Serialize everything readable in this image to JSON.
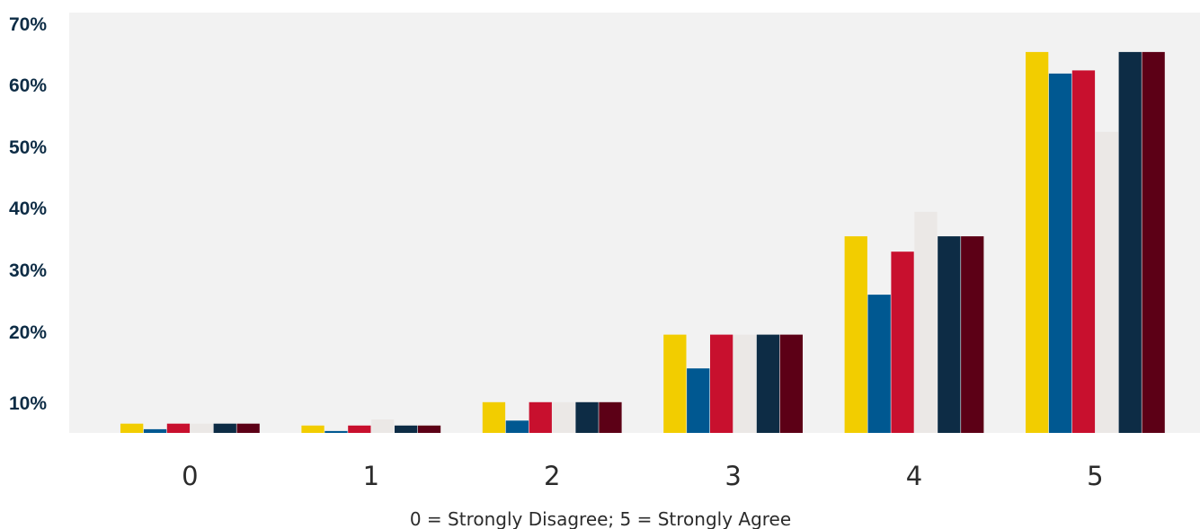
{
  "chart_data": {
    "type": "bar",
    "categories": [
      "0",
      "1",
      "2",
      "3",
      "4",
      "5"
    ],
    "xlabel": "0 = Strongly Disagree;  5 = Strongly Agree",
    "ylabel": "",
    "yticks": [
      "10%",
      "20%",
      "30%",
      "40%",
      "50%",
      "60%",
      "70%"
    ],
    "ylim": [
      0,
      70
    ],
    "grid": false,
    "legend": "none",
    "background": "#f2f2f2",
    "series": [
      {
        "color": "#f2cd00",
        "values": [
          1.5,
          1.2,
          5,
          16,
          32,
          62
        ]
      },
      {
        "color": "#005891",
        "values": [
          0.6,
          0.3,
          2,
          10.5,
          22.5,
          58.5
        ]
      },
      {
        "color": "#c8102e",
        "values": [
          1.5,
          1.2,
          5,
          16,
          29.5,
          59
        ]
      },
      {
        "color": "#ebe8e6",
        "values": [
          1.5,
          2.2,
          5,
          16,
          36,
          49
        ]
      },
      {
        "color": "#0d2c45",
        "values": [
          1.5,
          1.2,
          5,
          16,
          32,
          62
        ]
      },
      {
        "color": "#5c0016",
        "values": [
          1.5,
          1.2,
          5,
          16,
          32,
          62
        ]
      }
    ]
  }
}
